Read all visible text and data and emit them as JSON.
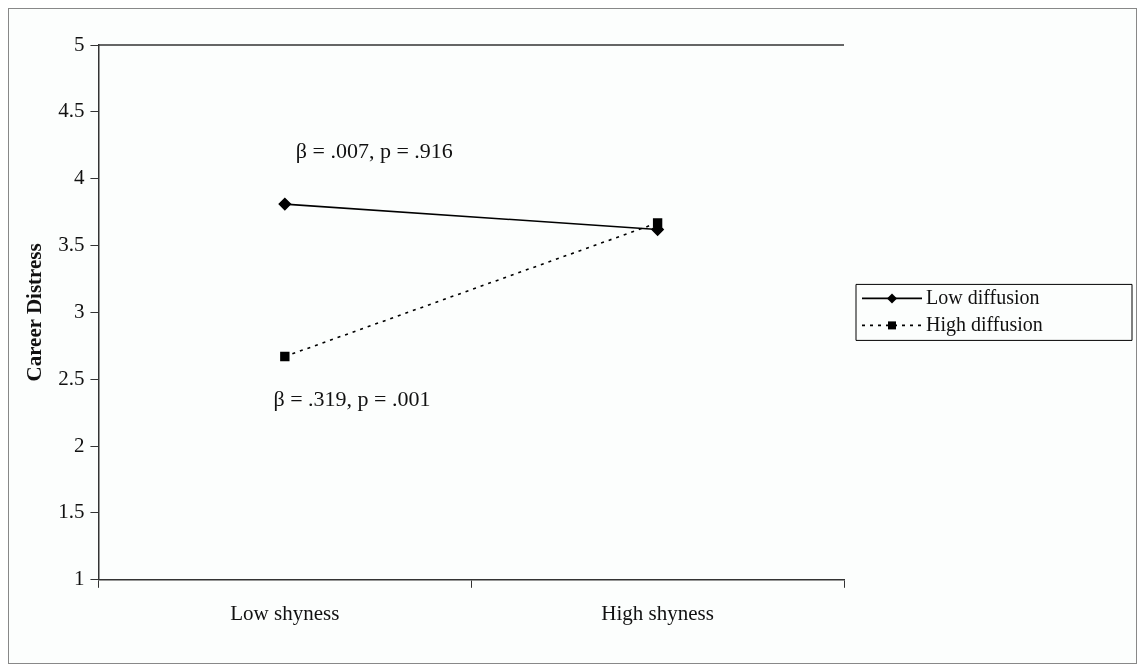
{
  "chart_data": {
    "type": "line",
    "categories": [
      "Low shyness",
      "High shyness"
    ],
    "ylabel": "Career Distress",
    "ylim": [
      1,
      5
    ],
    "yticks": [
      1,
      1.5,
      2,
      2.5,
      3,
      3.5,
      4,
      4.5,
      5
    ],
    "grid": false,
    "legend": "right",
    "series": [
      {
        "name": "Low diffusion",
        "color": "#000000",
        "values": [
          3.81,
          3.62
        ],
        "marker": "diamond",
        "line_style": "solid"
      },
      {
        "name": "High diffusion",
        "color": "#000000",
        "values": [
          2.67,
          3.67
        ],
        "marker": "square",
        "line_style": "dotted"
      }
    ],
    "annotations": [
      "β = .007, p = .916",
      "β = .319, p = .001"
    ]
  }
}
